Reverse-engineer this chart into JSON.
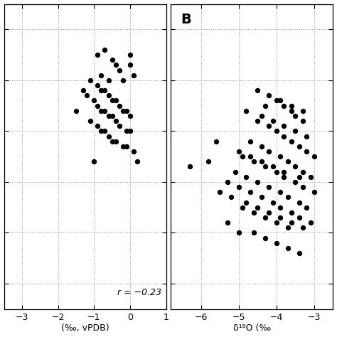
{
  "panel_A": {
    "x": [
      -0.9,
      -0.7,
      -0.5,
      -0.4,
      -0.3,
      -0.2,
      0.0,
      0.1,
      -1.1,
      -0.9,
      -0.8,
      -0.7,
      -0.6,
      -0.5,
      -0.4,
      -0.3,
      -0.2,
      -0.1,
      0.0,
      -1.2,
      -1.0,
      -0.9,
      -0.8,
      -0.7,
      -0.6,
      -0.5,
      -0.4,
      -0.3,
      -0.1,
      0.0,
      -1.1,
      -0.9,
      -0.8,
      -0.7,
      -0.6,
      -0.5,
      -0.4,
      -0.2,
      -0.1,
      0.1,
      -1.3,
      -0.8,
      -0.6,
      0.0,
      -1.5,
      -1.0,
      0.2
    ],
    "y": [
      5.5,
      5.6,
      5.4,
      5.3,
      5.2,
      5.0,
      5.5,
      5.1,
      5.0,
      4.9,
      4.8,
      4.8,
      4.7,
      4.6,
      4.6,
      4.5,
      4.4,
      4.4,
      4.3,
      4.7,
      4.6,
      4.5,
      4.4,
      4.4,
      4.3,
      4.3,
      4.2,
      4.1,
      4.0,
      4.0,
      4.2,
      4.1,
      4.0,
      4.0,
      3.9,
      3.8,
      3.8,
      3.7,
      3.7,
      3.6,
      4.8,
      5.1,
      5.0,
      5.3,
      4.4,
      3.4,
      3.4
    ],
    "r_text": "r = −0.23",
    "xlabel": "(‰, vPDB)",
    "xlim": [
      -3.5,
      1.0
    ],
    "ylim": [
      0.5,
      6.5
    ],
    "xticks": [
      -3,
      -2,
      -1,
      0,
      1
    ],
    "yticks": [
      1,
      2,
      3,
      4,
      5,
      6
    ]
  },
  "panel_B": {
    "x": [
      -4.3,
      -4.0,
      -3.8,
      -3.6,
      -3.5,
      -3.3,
      -4.5,
      -4.2,
      -4.0,
      -3.8,
      -3.6,
      -3.4,
      -3.2,
      -3.0,
      -4.7,
      -4.4,
      -4.2,
      -3.9,
      -3.7,
      -3.5,
      -3.3,
      -3.1,
      -4.9,
      -4.6,
      -4.3,
      -4.0,
      -3.8,
      -3.5,
      -3.3,
      -3.0,
      -5.1,
      -4.8,
      -4.5,
      -4.2,
      -3.9,
      -3.7,
      -3.4,
      -3.2,
      -5.3,
      -5.0,
      -4.7,
      -4.4,
      -4.1,
      -3.9,
      -3.6,
      -3.4,
      -3.1,
      -5.5,
      -5.2,
      -4.8,
      -4.5,
      -4.2,
      -3.9,
      -3.6,
      -3.3,
      -5.8,
      -6.3,
      -5.3,
      -5.0,
      -5.6,
      -4.9,
      -4.6,
      -4.3,
      -4.0,
      -3.7,
      -4.5,
      -4.2,
      -3.9,
      -3.6,
      -3.3,
      -4.8,
      -4.4,
      -4.1,
      -3.8,
      -3.5,
      -3.2,
      -5.0,
      -4.7,
      -4.4,
      -4.1,
      -3.8,
      -3.4,
      -4.6,
      -4.3,
      -4.0,
      -3.7,
      -3.4
    ],
    "y": [
      4.5,
      4.6,
      4.5,
      4.4,
      4.3,
      4.2,
      4.2,
      4.1,
      4.0,
      3.9,
      3.8,
      3.7,
      3.6,
      3.5,
      3.8,
      3.7,
      3.6,
      3.5,
      3.4,
      3.3,
      3.2,
      3.1,
      3.5,
      3.4,
      3.3,
      3.2,
      3.1,
      3.0,
      2.9,
      2.8,
      3.2,
      3.1,
      3.0,
      2.9,
      2.8,
      2.7,
      2.6,
      2.5,
      3.0,
      2.9,
      2.8,
      2.7,
      2.6,
      2.5,
      2.4,
      2.3,
      2.2,
      2.8,
      2.7,
      2.6,
      2.5,
      2.4,
      2.3,
      2.2,
      2.1,
      3.4,
      3.3,
      2.2,
      2.0,
      3.8,
      2.5,
      2.4,
      2.3,
      2.2,
      2.1,
      4.8,
      4.7,
      4.6,
      4.5,
      4.4,
      4.4,
      4.3,
      4.2,
      4.1,
      4.0,
      3.9,
      3.6,
      3.5,
      3.4,
      3.3,
      3.2,
      3.1,
      2.0,
      1.9,
      1.8,
      1.7,
      1.6
    ],
    "panel_label": "B",
    "xlabel": "δ¹⁸O (‰",
    "xlim": [
      -6.8,
      -2.5
    ],
    "ylim": [
      0.5,
      6.5
    ],
    "xticks": [
      -6,
      -5,
      -4,
      -3
    ],
    "yticks": [
      1,
      2,
      3,
      4,
      5,
      6
    ]
  },
  "dot_color": "#000000",
  "dot_size": 28,
  "bg_color": "#ffffff",
  "grid_color": "#888888",
  "fig_width": 4.74,
  "fig_height": 4.74
}
